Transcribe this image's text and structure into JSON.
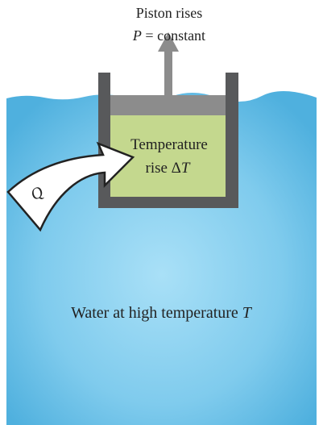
{
  "piston_label": {
    "line1": "Piston rises",
    "line2_parts": [
      "P",
      " = constant"
    ]
  },
  "gas_label": {
    "line1": "Temperature",
    "line2_parts": [
      "rise Δ",
      "T"
    ]
  },
  "heat_label": "Q",
  "water_label_parts": [
    "Water at high temperature ",
    "T"
  ]
}
